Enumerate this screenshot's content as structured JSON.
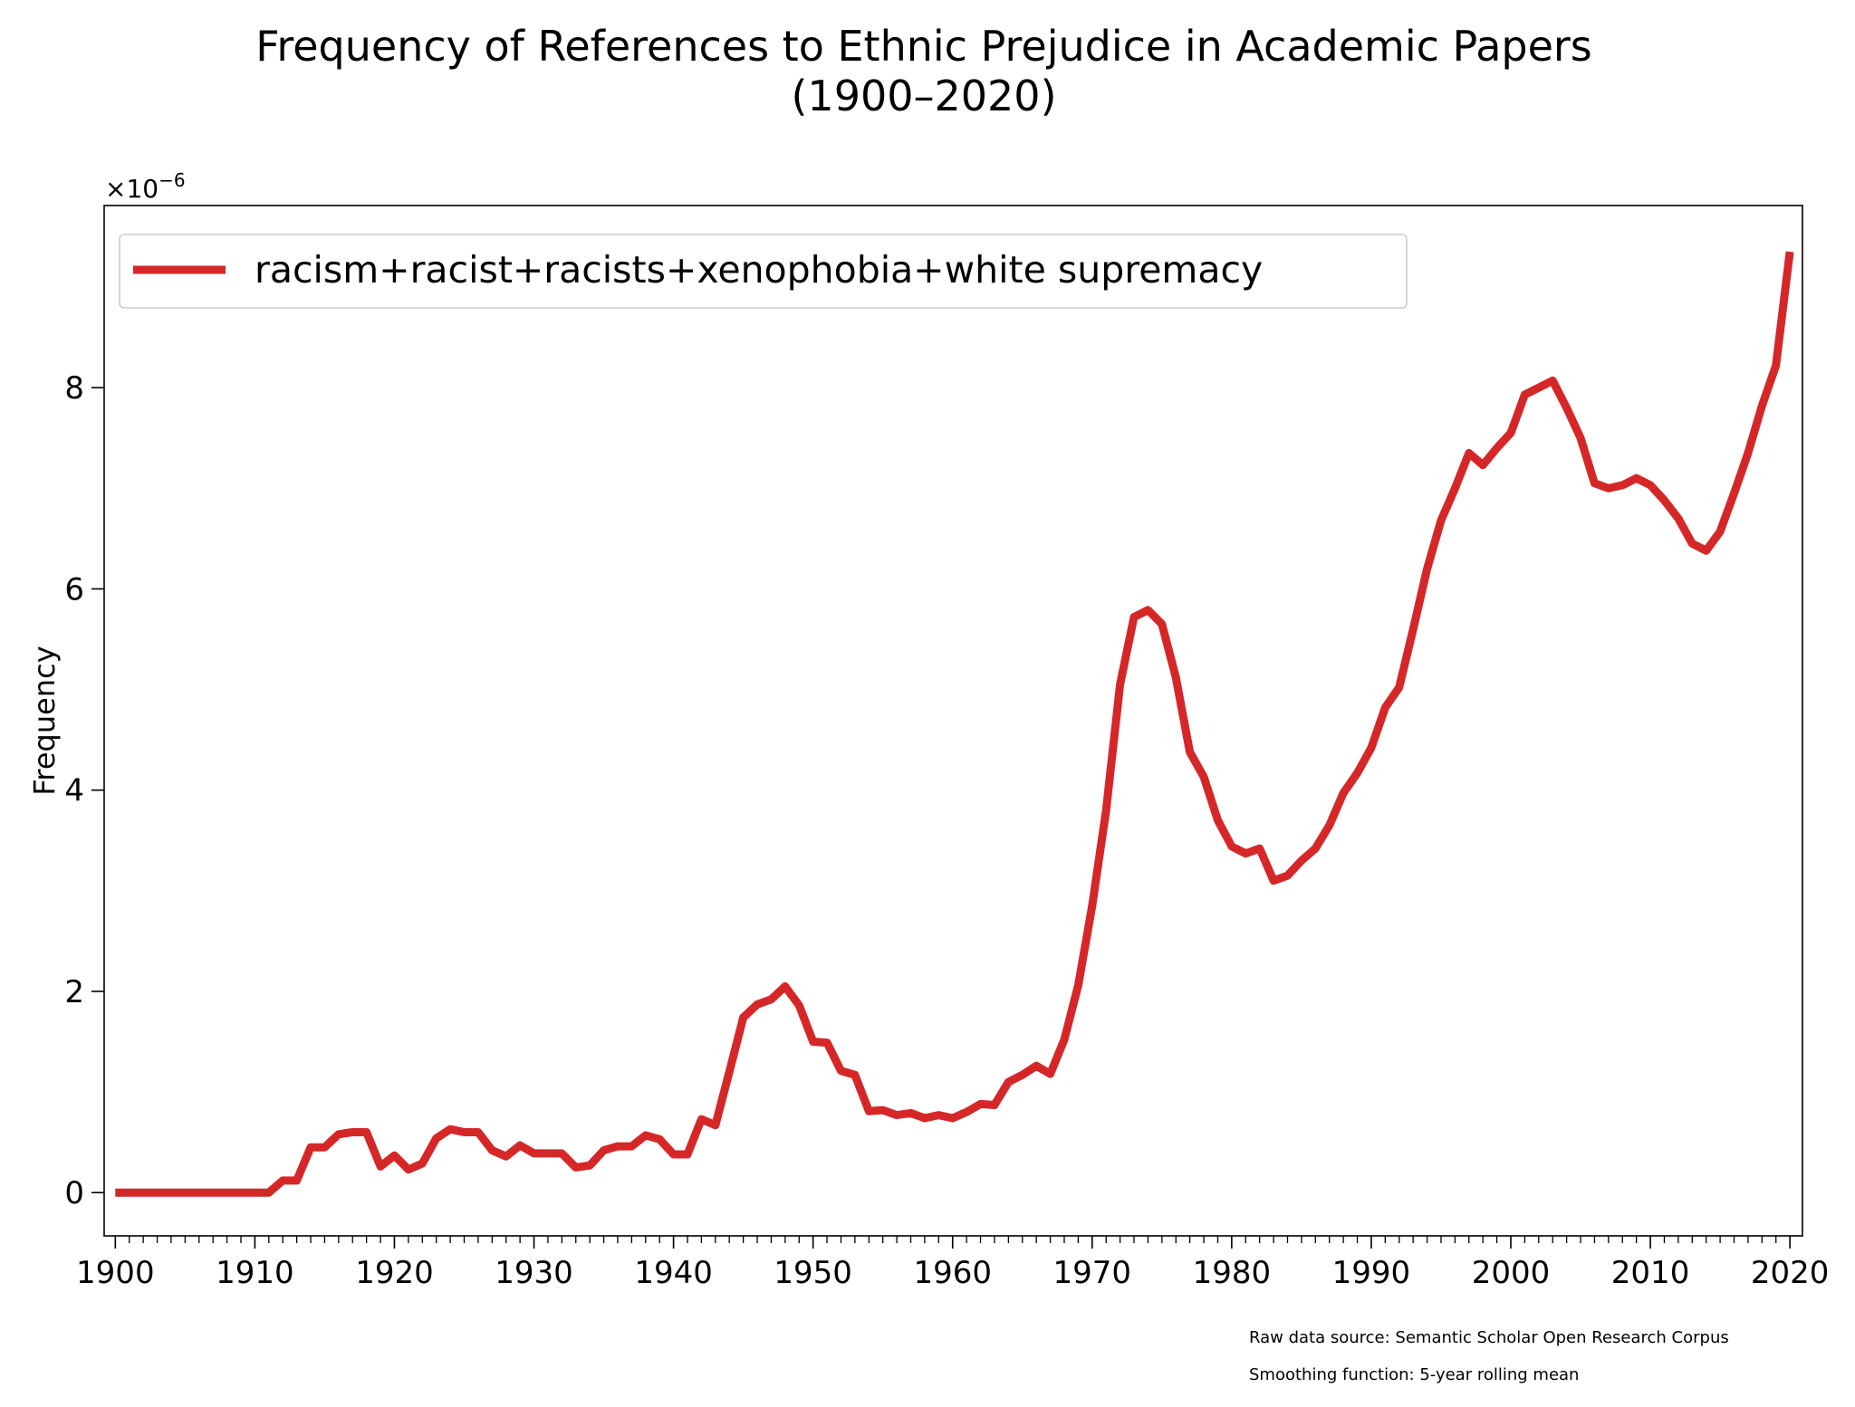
{
  "chart_data": {
    "type": "line",
    "title": "Frequency of References to Ethnic Prejudice in Academic Papers",
    "subtitle": "(1900–2020)",
    "xlabel": "",
    "ylabel": "Frequency",
    "y_offset_label": "×10",
    "y_offset_exponent": "−6",
    "xlim": [
      1899.2,
      2020.9
    ],
    "ylim": [
      -0.43,
      9.81
    ],
    "x_ticks": [
      1900,
      1910,
      1920,
      1930,
      1940,
      1950,
      1960,
      1970,
      1980,
      1990,
      2000,
      2010,
      2020
    ],
    "y_ticks": [
      0,
      2,
      4,
      6,
      8
    ],
    "grid": false,
    "legend_position": "top-left",
    "series": [
      {
        "name": "racism+racist+racists+xenophobia+white supremacy",
        "color": "#d62728",
        "x_start": 1900,
        "values": [
          0,
          0,
          0,
          0,
          0,
          0,
          0,
          0,
          0,
          0,
          0,
          0,
          0.12,
          0.12,
          0.45,
          0.45,
          0.58,
          0.6,
          0.6,
          0.26,
          0.37,
          0.23,
          0.29,
          0.54,
          0.63,
          0.6,
          0.6,
          0.42,
          0.36,
          0.47,
          0.39,
          0.39,
          0.39,
          0.25,
          0.27,
          0.42,
          0.46,
          0.46,
          0.57,
          0.53,
          0.38,
          0.38,
          0.73,
          0.67,
          1.2,
          1.74,
          1.87,
          1.92,
          2.05,
          1.86,
          1.5,
          1.49,
          1.21,
          1.17,
          0.81,
          0.82,
          0.77,
          0.79,
          0.74,
          0.77,
          0.74,
          0.8,
          0.88,
          0.87,
          1.1,
          1.17,
          1.26,
          1.18,
          1.52,
          2.06,
          2.85,
          3.8,
          5.05,
          5.72,
          5.79,
          5.65,
          5.12,
          4.38,
          4.13,
          3.7,
          3.44,
          3.37,
          3.42,
          3.1,
          3.15,
          3.3,
          3.42,
          3.65,
          3.97,
          4.17,
          4.42,
          4.82,
          5.02,
          5.6,
          6.2,
          6.68,
          7.0,
          7.35,
          7.23,
          7.4,
          7.55,
          7.93,
          8.0,
          8.07,
          7.8,
          7.5,
          7.05,
          7.0,
          7.03,
          7.1,
          7.03,
          6.88,
          6.7,
          6.45,
          6.38,
          6.57,
          6.95,
          7.35,
          7.82,
          8.22,
          9.35
        ]
      }
    ],
    "annotations": [
      "Raw data source: Semantic Scholar Open Research Corpus",
      "Smoothing function: 5-year rolling mean"
    ]
  }
}
